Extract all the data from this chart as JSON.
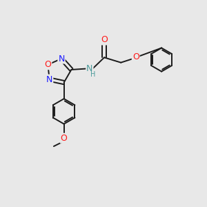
{
  "bg_color": "#e8e8e8",
  "bond_color": "#1a1a1a",
  "N_color": "#1919ff",
  "O_color": "#ff1919",
  "NH_color": "#4a9a9a",
  "line_width": 1.4,
  "font_size": 9,
  "xlim": [
    0,
    10
  ],
  "ylim": [
    0,
    10
  ]
}
